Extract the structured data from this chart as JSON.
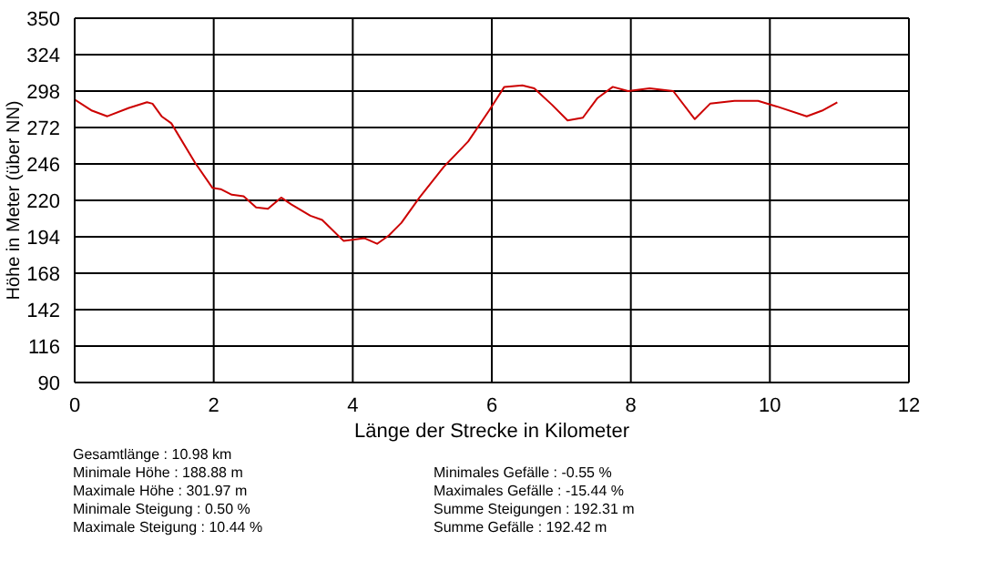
{
  "chart_data": {
    "type": "line",
    "xlabel": "Länge der Strecke in Kilometer",
    "ylabel": "Höhe in Meter (über NN)",
    "x": [
      0,
      0.25,
      0.47,
      0.78,
      1.04,
      1.12,
      1.25,
      1.39,
      1.73,
      1.98,
      2.1,
      2.26,
      2.43,
      2.61,
      2.78,
      2.97,
      3.12,
      3.39,
      3.56,
      3.87,
      4.17,
      4.35,
      4.52,
      4.7,
      4.96,
      5.31,
      5.66,
      5.96,
      6.18,
      6.44,
      6.61,
      6.87,
      7.09,
      7.31,
      7.52,
      7.74,
      7.96,
      8.27,
      8.61,
      8.92,
      9.14,
      9.49,
      9.83,
      10.1,
      10.53,
      10.75,
      10.97
    ],
    "series": [
      {
        "color": "#cc0000",
        "values": [
          292,
          284,
          280,
          286,
          290,
          289,
          280,
          275,
          247,
          229,
          228,
          224,
          223,
          215,
          214,
          222,
          217,
          209,
          206,
          191,
          193,
          189,
          195,
          204,
          222,
          244,
          262,
          284,
          301,
          302,
          300,
          288,
          277,
          279,
          293,
          301,
          298,
          300,
          298,
          278,
          289,
          291,
          291,
          287,
          280,
          284,
          290
        ]
      }
    ],
    "xlim": [
      0,
      12
    ],
    "xticks": [
      0,
      2,
      4,
      6,
      8,
      10,
      12
    ],
    "ylim": [
      90,
      350
    ],
    "yticks": [
      90,
      116,
      142,
      168,
      194,
      220,
      246,
      272,
      298,
      324,
      350
    ],
    "grid": true,
    "legend": false,
    "marker": "none",
    "line_style": "solid",
    "annotations": [
      "Gesamtlänge : 10.98 km",
      "Minimale Höhe : 188.88 m",
      "Maximale Höhe : 301.97 m",
      "Minimale Steigung : 0.50 %",
      "Maximale Steigung : 10.44 %",
      "Minimales Gefälle : -0.55 %",
      "Maximales Gefälle : -15.44 %",
      "Summe Steigungen : 192.31 m",
      "Summe Gefälle : 192.42 m"
    ]
  }
}
